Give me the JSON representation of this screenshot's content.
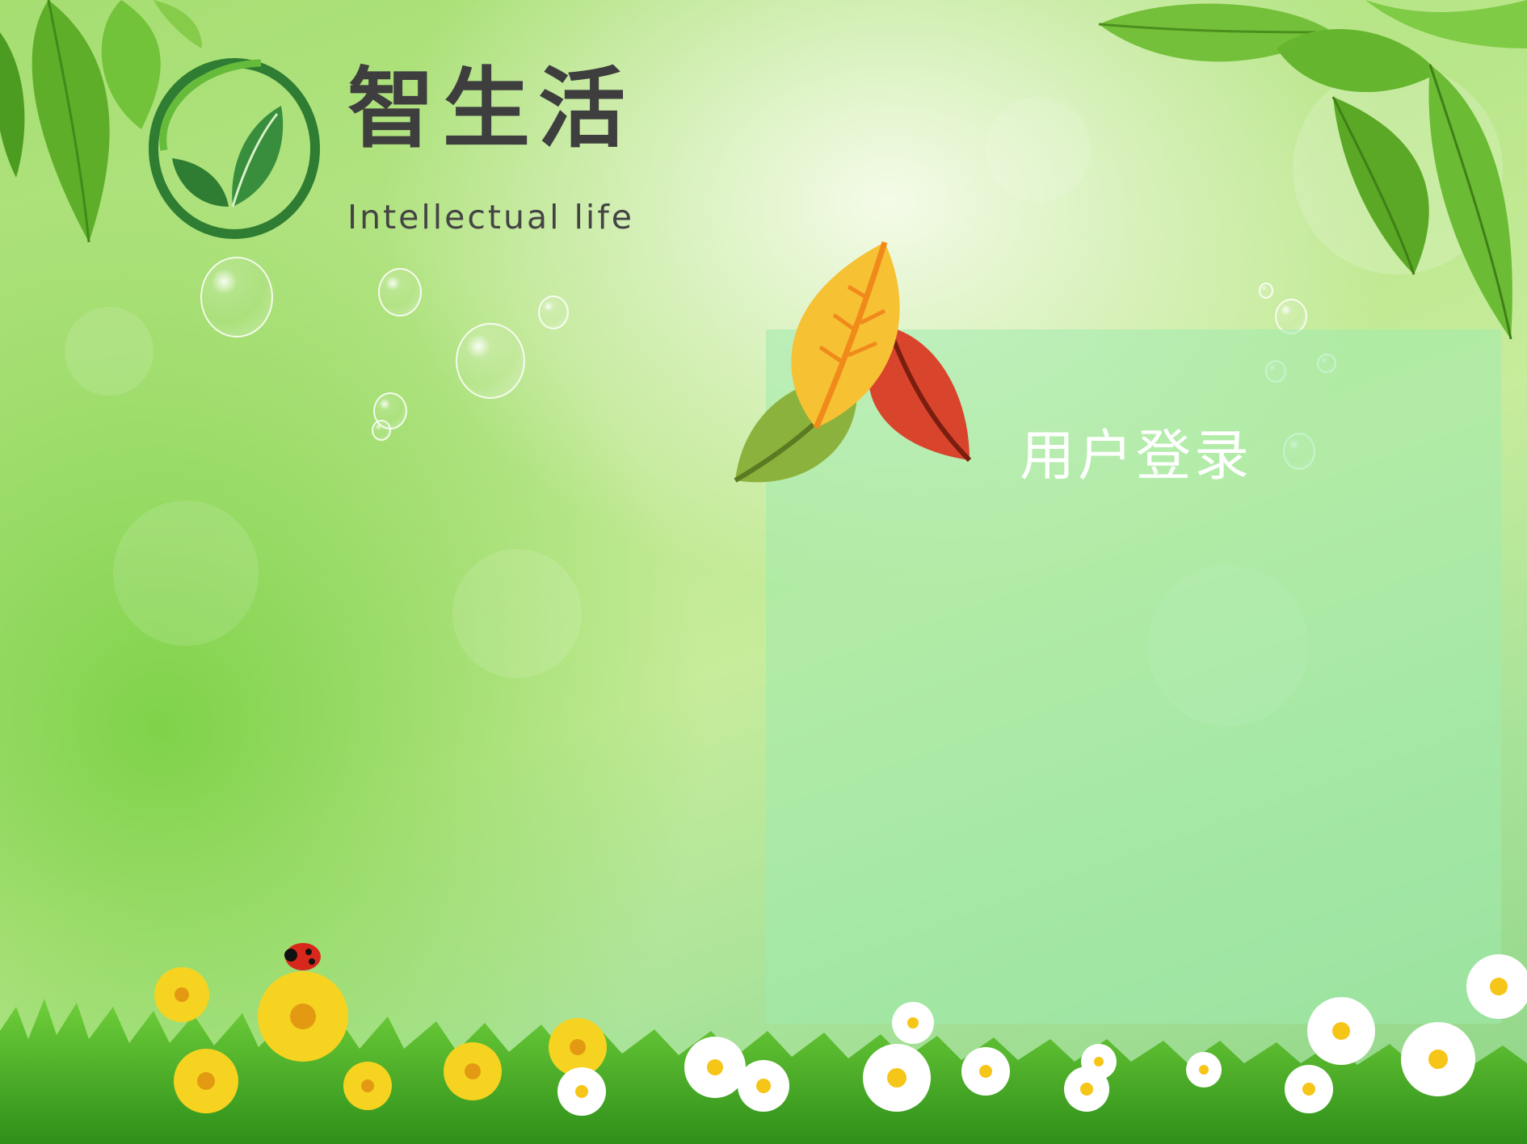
{
  "brand": {
    "title": "智生活",
    "subtitle": "Intellectual life",
    "logo_icon": "leaf-circle-logo-icon"
  },
  "login": {
    "title": "用户登录",
    "emblem_icon": "three-leaves-icon"
  },
  "colors": {
    "brand_green": "#2e7d32",
    "text_dark": "#3e3e3e",
    "panel": "#a0ebaf"
  }
}
